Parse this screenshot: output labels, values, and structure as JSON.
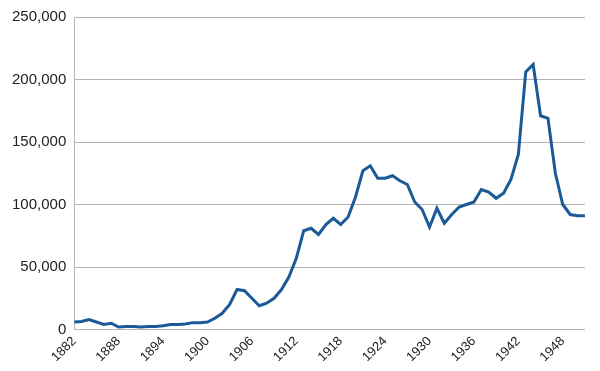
{
  "chart_data": {
    "type": "line",
    "categories": [
      "1882",
      null,
      null,
      null,
      null,
      null,
      "1888",
      null,
      null,
      null,
      null,
      null,
      "1894",
      null,
      null,
      null,
      null,
      null,
      "1900",
      null,
      null,
      null,
      null,
      null,
      "1906",
      null,
      null,
      null,
      null,
      null,
      "1912",
      null,
      null,
      null,
      null,
      null,
      "1918",
      null,
      null,
      null,
      null,
      null,
      "1924",
      null,
      null,
      null,
      null,
      null,
      "1930",
      null,
      null,
      null,
      null,
      null,
      "1936",
      null,
      null,
      null,
      null,
      null,
      "1942",
      null,
      null,
      null,
      null,
      null,
      "1948",
      null,
      null,
      null
    ],
    "values": [
      6000,
      6500,
      8000,
      6000,
      4000,
      5000,
      2000,
      2500,
      2500,
      2000,
      2500,
      2500,
      3000,
      4000,
      4000,
      4500,
      5500,
      5500,
      6000,
      9000,
      13000,
      20000,
      32000,
      31000,
      25000,
      19000,
      21000,
      25000,
      32000,
      42000,
      57000,
      79000,
      81000,
      76000,
      84000,
      89000,
      84000,
      90000,
      106000,
      127000,
      131000,
      121000,
      121000,
      123000,
      119000,
      116000,
      102000,
      96000,
      82000,
      97000,
      85000,
      92000,
      98000,
      100000,
      102000,
      112000,
      110000,
      105000,
      109000,
      120000,
      140000,
      206000,
      212000,
      171000,
      169000,
      125000,
      100000,
      92000,
      91000,
      91000
    ],
    "color": "#1c5a97",
    "ylim": [
      0,
      250000
    ],
    "yticks": [
      0,
      {
        "value": 50000,
        "label": "50,000"
      },
      {
        "value": 100000,
        "label": "100,000"
      },
      {
        "value": 150000,
        "label": "150,000"
      },
      {
        "value": 200000,
        "label": "200,000"
      },
      {
        "value": 250000,
        "label": "250,000"
      }
    ],
    "grid": true
  }
}
